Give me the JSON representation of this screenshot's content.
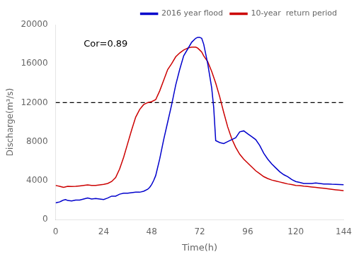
{
  "chart_data": {
    "type": "line",
    "xlabel": "Time(h)",
    "ylabel": "Discharge(m³/s)",
    "xlim": [
      0,
      144
    ],
    "ylim": [
      0,
      20000
    ],
    "xticks": [
      0,
      24,
      48,
      72,
      96,
      120,
      144
    ],
    "yticks": [
      0,
      4000,
      8000,
      12000,
      16000,
      20000
    ],
    "grid": false,
    "legend": "upper right",
    "hline": {
      "value": 12000,
      "line_style": "dashed",
      "color": "#000000"
    },
    "annotations": [
      {
        "text": "Cor=0.89",
        "x": 14,
        "y": 18500
      }
    ],
    "series": [
      {
        "name": "2016 year flood",
        "color": "#0000cc",
        "x": [
          0,
          1,
          2,
          3,
          4,
          5,
          6,
          8,
          10,
          12,
          14,
          16,
          18,
          20,
          22,
          24,
          26,
          28,
          30,
          32,
          34,
          36,
          38,
          40,
          42,
          44,
          46,
          47,
          48,
          49,
          50,
          52,
          54,
          56,
          58,
          60,
          62,
          64,
          66,
          68,
          70,
          71,
          72,
          73,
          74,
          76,
          78,
          79,
          80,
          82,
          84,
          86,
          88,
          90,
          92,
          94,
          96,
          98,
          100,
          102,
          104,
          106,
          108,
          110,
          112,
          114,
          116,
          118,
          120,
          122,
          124,
          126,
          128,
          130,
          132,
          134,
          136,
          138,
          140,
          142,
          144
        ],
        "values": [
          1700,
          1750,
          1800,
          1900,
          2000,
          2050,
          1950,
          1900,
          2000,
          2000,
          2100,
          2200,
          2100,
          2150,
          2100,
          2050,
          2200,
          2400,
          2400,
          2600,
          2700,
          2700,
          2750,
          2800,
          2800,
          2900,
          3100,
          3300,
          3600,
          4000,
          4500,
          6200,
          8200,
          10000,
          11800,
          13800,
          15400,
          16800,
          17500,
          18200,
          18600,
          18700,
          18700,
          18600,
          18000,
          16000,
          13500,
          11500,
          8100,
          7900,
          7800,
          8000,
          8200,
          8400,
          9000,
          9100,
          8800,
          8500,
          8200,
          7600,
          6800,
          6200,
          5700,
          5300,
          4900,
          4600,
          4400,
          4100,
          3900,
          3800,
          3700,
          3700,
          3700,
          3750,
          3700,
          3650,
          3650,
          3620,
          3600,
          3580,
          3560
        ]
      },
      {
        "name": "10-year  return period",
        "color": "#cc0000",
        "x": [
          0,
          1,
          2,
          3,
          4,
          5,
          6,
          8,
          10,
          12,
          14,
          16,
          18,
          20,
          22,
          24,
          26,
          28,
          30,
          32,
          34,
          36,
          38,
          40,
          42,
          44,
          46,
          48,
          50,
          52,
          54,
          56,
          58,
          60,
          62,
          64,
          66,
          68,
          70,
          71,
          72,
          73,
          74,
          76,
          78,
          80,
          82,
          84,
          86,
          88,
          90,
          92,
          94,
          96,
          98,
          100,
          102,
          104,
          106,
          108,
          110,
          112,
          114,
          116,
          118,
          120,
          122,
          124,
          126,
          128,
          130,
          132,
          134,
          136,
          138,
          140,
          142,
          144
        ],
        "values": [
          3500,
          3450,
          3400,
          3350,
          3300,
          3350,
          3400,
          3380,
          3400,
          3450,
          3500,
          3550,
          3500,
          3500,
          3550,
          3600,
          3700,
          3900,
          4300,
          5200,
          6400,
          7800,
          9200,
          10500,
          11300,
          11800,
          12000,
          12100,
          12300,
          13200,
          14300,
          15400,
          16000,
          16700,
          17100,
          17400,
          17600,
          17700,
          17700,
          17600,
          17400,
          17200,
          16800,
          16200,
          15200,
          14000,
          12600,
          11000,
          9500,
          8300,
          7400,
          6700,
          6200,
          5800,
          5400,
          5000,
          4700,
          4400,
          4200,
          4050,
          3950,
          3850,
          3750,
          3650,
          3580,
          3500,
          3470,
          3420,
          3380,
          3340,
          3300,
          3250,
          3200,
          3150,
          3100,
          3050,
          3000,
          2950
        ]
      }
    ]
  }
}
